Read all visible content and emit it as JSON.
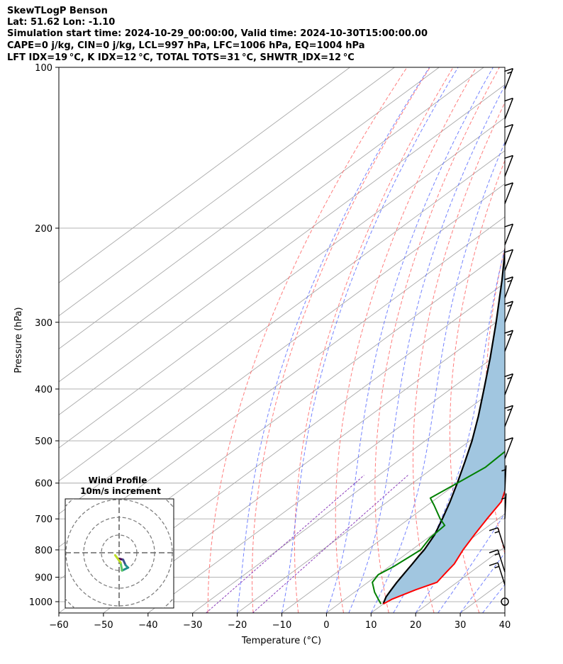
{
  "header": {
    "line1": "SkewTLogP Benson",
    "line2": "Lat: 51.62   Lon: -1.10",
    "line3": "Simulation start time: 2024-10-29_00:00:00, Valid time: 2024-10-30T15:00:00.00",
    "line4": "CAPE=0 j/kg, CIN=0 j/kg, LCL=997 hPa, LFC=1006 hPa, EQ=1004 hPa",
    "line5": "LFT IDX=19 °C, K IDX=12 °C, TOTAL TOTS=31 °C, SHWTR_IDX=12 °C"
  },
  "chart_data": {
    "type": "line",
    "title": "SkewTLogP Benson",
    "xlabel": "Temperature (°C)",
    "ylabel": "Pressure (hPa)",
    "xlim": [
      -60,
      40
    ],
    "ylim": [
      1050,
      100
    ],
    "y_scale": "log",
    "skew": true,
    "grid": true,
    "x_ticks": [
      -60,
      -50,
      -40,
      -30,
      -20,
      -10,
      0,
      10,
      20,
      30,
      40
    ],
    "x_tick_labels": [
      "−60",
      "−50",
      "−40",
      "−30",
      "−20",
      "−10",
      "0",
      "10",
      "20",
      "30",
      "40"
    ],
    "y_ticks": [
      1000,
      900,
      800,
      700,
      600,
      500,
      400,
      300,
      200,
      100
    ],
    "y_tick_labels": [
      "1000",
      "900",
      "800",
      "700",
      "600",
      "500",
      "400",
      "300",
      "200",
      "100"
    ],
    "series": [
      {
        "color": "#ff0000",
        "pressure": [
          1010,
          990,
          950,
          920,
          900,
          880,
          850,
          800,
          750,
          700,
          650,
          620,
          600,
          560,
          520,
          480,
          440,
          400,
          360,
          320,
          290,
          260,
          230,
          210,
          195,
          180,
          170,
          160,
          150,
          140,
          125,
          115,
          100
        ],
        "temperature": [
          10.0,
          10.5,
          13.0,
          15.5,
          15.0,
          14.5,
          13.8,
          11.5,
          9.5,
          7.5,
          5.5,
          3.0,
          1.5,
          -2.0,
          -5.5,
          -9.5,
          -13.5,
          -18.5,
          -23.5,
          -29.0,
          -33.5,
          -38.5,
          -44.5,
          -48.5,
          -52.0,
          -54.5,
          -55.5,
          -55.0,
          -54.0,
          -53.5,
          -52.5,
          -51.5,
          -51.5
        ]
      },
      {
        "color": "#008000",
        "pressure": [
          1010,
          990,
          960,
          920,
          890,
          860,
          830,
          800,
          760,
          720,
          700,
          660,
          640,
          600,
          560,
          510,
          460,
          420,
          380,
          340,
          310,
          290,
          270,
          255,
          235,
          215,
          195,
          180,
          165,
          155,
          145,
          130,
          115,
          100
        ],
        "temperature": [
          9.5,
          7.5,
          4.5,
          1.0,
          0.0,
          1.0,
          1.5,
          2.0,
          0.5,
          0.0,
          -3.0,
          -8.5,
          -11.5,
          -10.0,
          -8.5,
          -9.0,
          -13.0,
          -21.5,
          -24.0,
          -15.5,
          -17.5,
          -21.5,
          -24.0,
          -22.0,
          -25.0,
          -31.0,
          -40.0,
          -49.5,
          -43.5,
          -44.5,
          -48.0,
          -54.0,
          -57.0,
          -60.0
        ]
      },
      {
        "name": "",
        "color": "#000000",
        "pressure": [
          1010,
          1000,
          980,
          950,
          920,
          900,
          870,
          850,
          820,
          800,
          750,
          700,
          650,
          600,
          550,
          500,
          450,
          400,
          350,
          300,
          250,
          200,
          150,
          120,
          100
        ],
        "temperature": [
          10.0,
          9.5,
          8.5,
          7.5,
          6.5,
          5.9,
          5.0,
          4.4,
          3.4,
          2.8,
          0.6,
          -2.5,
          -6.0,
          -10.0,
          -14.5,
          -19.5,
          -25.5,
          -32.5,
          -40.5,
          -50.0,
          -61.5,
          -76.0,
          -96.0,
          -112.0,
          -124.0
        ]
      }
    ],
    "cape_shading": {
      "color": "#a1c6e0",
      "between": [
        "red temperature",
        "black parcel"
      ]
    },
    "wind_barbs": [
      {
        "pressure": 1000,
        "calm": true
      },
      {
        "pressure": 930,
        "speed_kt": 15
      },
      {
        "pressure": 880,
        "speed_kt": 15
      },
      {
        "pressure": 800,
        "speed_kt": 15
      },
      {
        "pressure": 700,
        "speed_kt": 5
      },
      {
        "pressure": 620,
        "speed_kt": 5
      },
      {
        "pressure": 540,
        "speed_kt": 10
      },
      {
        "pressure": 470,
        "speed_kt": 15
      },
      {
        "pressure": 410,
        "speed_kt": 15
      },
      {
        "pressure": 340,
        "speed_kt": 15
      },
      {
        "pressure": 300,
        "speed_kt": 15
      },
      {
        "pressure": 270,
        "speed_kt": 15
      },
      {
        "pressure": 240,
        "speed_kt": 10
      },
      {
        "pressure": 215,
        "speed_kt": 10
      },
      {
        "pressure": 180,
        "speed_kt": 10
      },
      {
        "pressure": 160,
        "speed_kt": 10
      },
      {
        "pressure": 140,
        "speed_kt": 10
      },
      {
        "pressure": 125,
        "speed_kt": 10
      },
      {
        "pressure": 110,
        "speed_kt": 15
      }
    ],
    "inset": {
      "title_line1": "Wind Profile",
      "title_line2": "10m/s increment",
      "rings": 3,
      "hodograph": [
        [
          0.0,
          -1.2
        ],
        [
          0.8,
          -1.4
        ],
        [
          1.3,
          -2.5
        ],
        [
          1.8,
          -3.0
        ],
        [
          0.6,
          -3.6
        ],
        [
          0.3,
          -2.0
        ],
        [
          -0.5,
          -0.9
        ],
        [
          -0.8,
          -0.5
        ]
      ]
    }
  },
  "colors": {
    "temperature": "#ff0000",
    "dewpoint": "#008000",
    "parcel": "#000000",
    "cape_fill": "#a1c6e0",
    "isotherm": "#a9a9a9",
    "dry_adiabat": "#ff6666",
    "moist_adiabat": "#5c6dff",
    "mixing_ratio": "#8b3dba"
  }
}
